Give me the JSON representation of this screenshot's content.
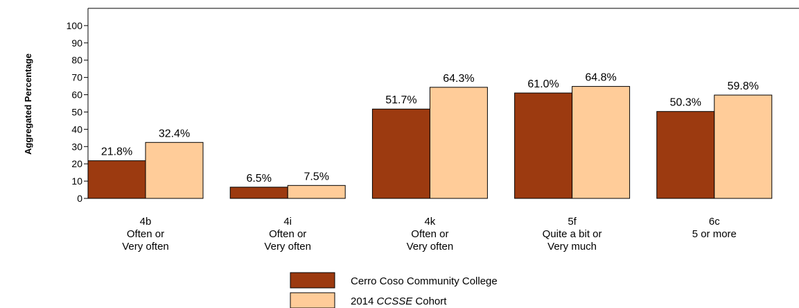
{
  "chart_data": {
    "type": "bar",
    "ylabel": "Aggregated Percentage",
    "ylim": [
      0,
      110
    ],
    "yticks": [
      0,
      10,
      20,
      30,
      40,
      50,
      60,
      70,
      80,
      90,
      100
    ],
    "categories": [
      [
        "4b",
        "Often or",
        "Very often"
      ],
      [
        "4i",
        "Often or",
        "Very often"
      ],
      [
        "4k",
        "Often or",
        "Very often"
      ],
      [
        "5f",
        "Quite a bit or",
        "Very much"
      ],
      [
        "6c",
        "5 or more"
      ]
    ],
    "series": [
      {
        "name": "Cerro Coso Community College",
        "color": "#9C3A10",
        "values": [
          21.8,
          6.5,
          51.7,
          61.0,
          50.3
        ],
        "labels": [
          "21.8%",
          "6.5%",
          "51.7%",
          "61.0%",
          "50.3%"
        ]
      },
      {
        "name_parts": [
          "2014 ",
          "CCSSE",
          " Cohort"
        ],
        "color": "#FFCC99",
        "values": [
          32.4,
          7.5,
          64.3,
          64.8,
          59.8
        ],
        "labels": [
          "32.4%",
          "7.5%",
          "64.3%",
          "64.8%",
          "59.8%"
        ]
      }
    ],
    "grid": false,
    "legend_position": "bottom-center"
  }
}
